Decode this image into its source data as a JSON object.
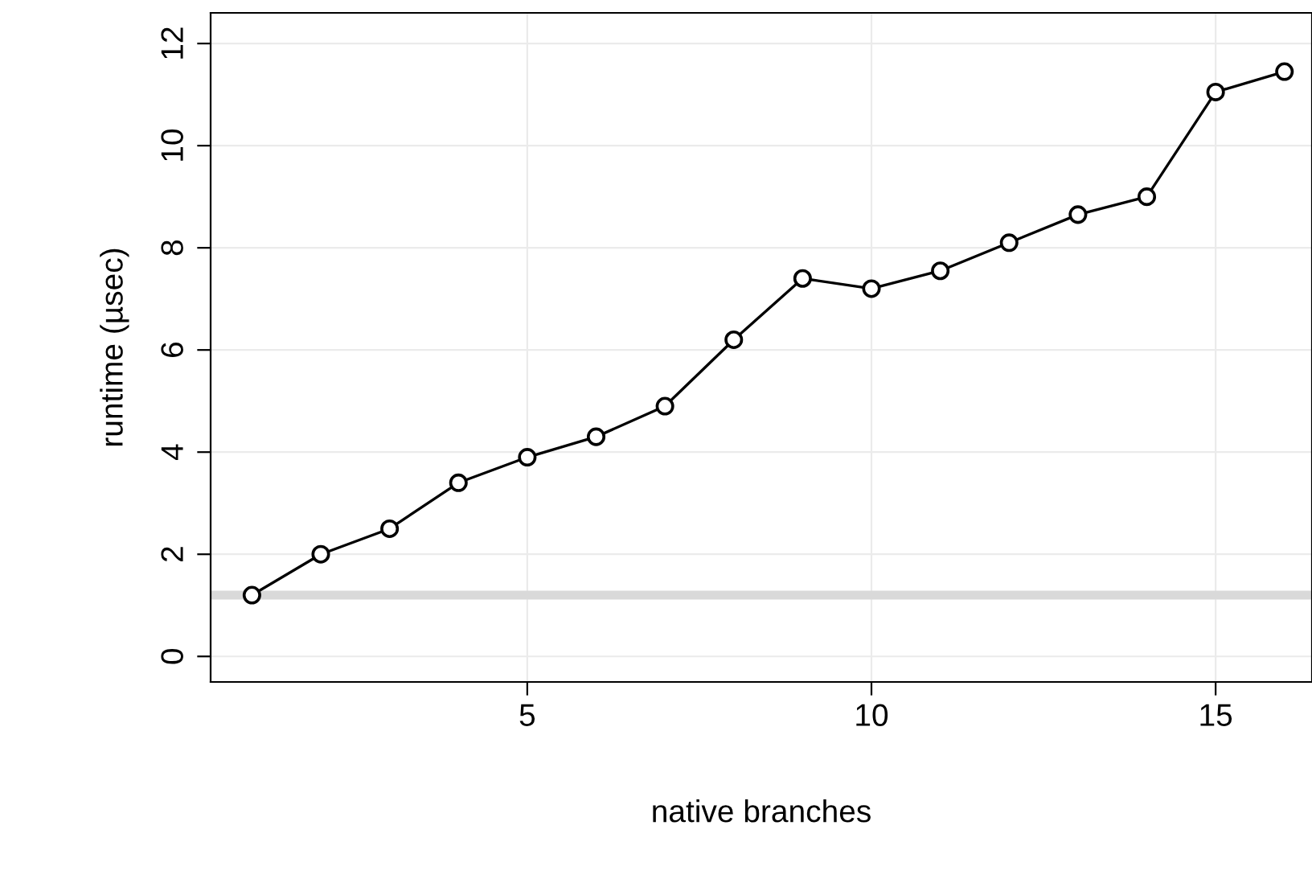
{
  "chart_data": {
    "type": "line",
    "xlabel": "native branches",
    "ylabel": "runtime (µsec)",
    "x": [
      1,
      2,
      3,
      4,
      5,
      6,
      7,
      8,
      9,
      10,
      11,
      12,
      13,
      14,
      15,
      16
    ],
    "series": [
      {
        "color": "#000000",
        "values": [
          1.2,
          2.0,
          2.5,
          3.4,
          3.9,
          4.3,
          4.9,
          6.2,
          7.4,
          7.2,
          7.55,
          8.1,
          8.65,
          9.0,
          11.05,
          11.45
        ]
      }
    ],
    "xlim": [
      0.4,
      16.4
    ],
    "ylim": [
      -0.5,
      12.6
    ],
    "xticks": [
      5,
      10,
      15
    ],
    "yticks": [
      0,
      2,
      4,
      6,
      8,
      10,
      12
    ],
    "ref_lines": [
      {
        "axis": "y",
        "value": 1.2,
        "color": "#d9d9d9"
      }
    ],
    "grid": true,
    "marker": "circle",
    "line_style": "solid"
  }
}
